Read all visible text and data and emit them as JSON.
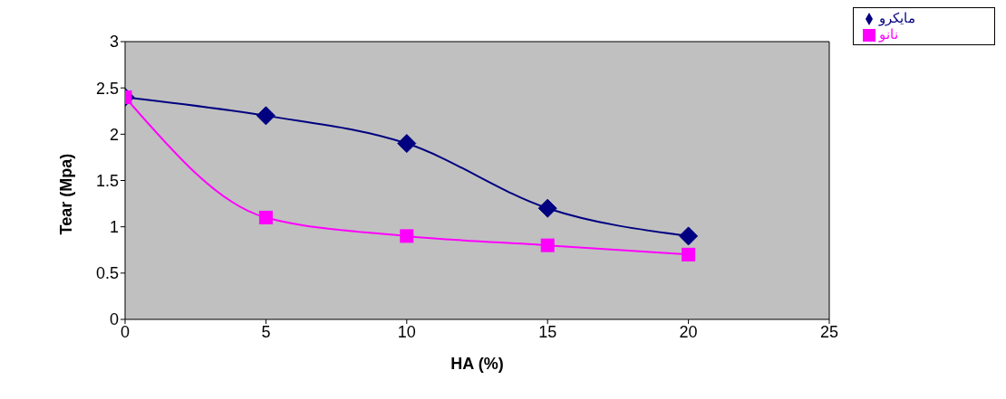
{
  "chart_data": {
    "type": "line",
    "xlabel": "HA (%)",
    "ylabel": "Tear (Mpa)",
    "x": [
      0,
      5,
      10,
      15,
      20
    ],
    "series": [
      {
        "name": "مايكرو",
        "color": "#000080",
        "marker": "diamond",
        "values": [
          2.4,
          2.2,
          1.9,
          1.2,
          0.9
        ]
      },
      {
        "name": "نانو",
        "color": "#ff00ff",
        "marker": "square",
        "values": [
          2.4,
          1.1,
          0.9,
          0.8,
          0.7
        ]
      }
    ],
    "xlim": [
      0,
      25
    ],
    "xticks": [
      0,
      5,
      10,
      15,
      20,
      25
    ],
    "ylim": [
      0,
      3
    ],
    "yticks": [
      0,
      0.5,
      1,
      1.5,
      2,
      2.5,
      3
    ],
    "legend": "top right",
    "line_style": "solid"
  }
}
